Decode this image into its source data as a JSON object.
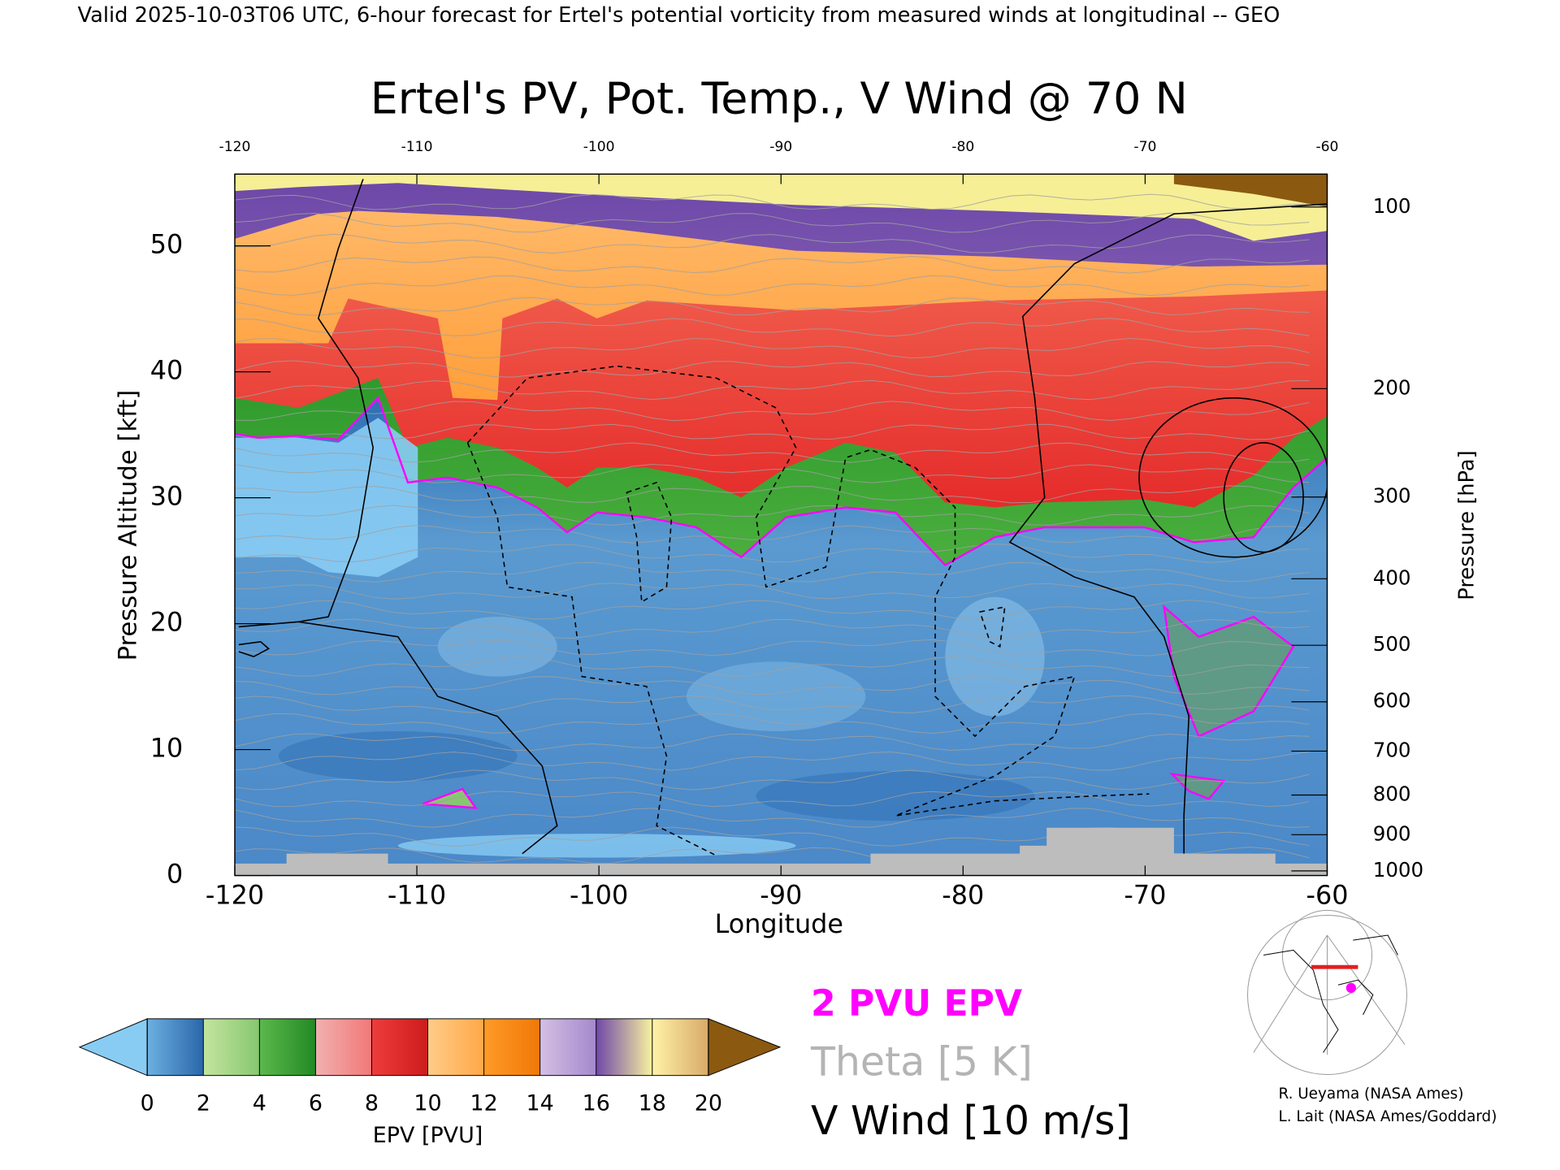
{
  "header": "Valid 2025-10-03T06 UTC, 6-hour forecast for Ertel's potential vorticity from measured winds at longitudinal -- GEO",
  "chart_data": {
    "type": "cross-section",
    "title": "Ertel's PV, Pot. Temp., V Wind @ 70 N",
    "x_label": "Longitude",
    "y_label": "Pressure Altitude [kft]",
    "y2_label": "Pressure [hPa]",
    "xlim": [
      -120,
      -60
    ],
    "xticks": [
      -120,
      -110,
      -100,
      -90,
      -80,
      -70,
      -60
    ],
    "ylim": [
      0,
      55.7
    ],
    "yticks": [
      0,
      10,
      20,
      30,
      40,
      50
    ],
    "y2lim": [
      1013.25,
      88.2
    ],
    "y2scale": "standard-atmosphere",
    "y2ticks": [
      100,
      200,
      300,
      400,
      500,
      600,
      700,
      800,
      900,
      1000
    ],
    "colorbar": {
      "label": "EPV [PVU]",
      "ticks": [
        0,
        2,
        4,
        6,
        8,
        10,
        12,
        14,
        16,
        18,
        20
      ],
      "colors": [
        [
          "#6cb0e0",
          "#2a66aa"
        ],
        [
          "#c4e4a0",
          "#86c870"
        ],
        [
          "#5cb84c",
          "#228a24"
        ],
        [
          "#f2b0b0",
          "#f27878"
        ],
        [
          "#ee3c3c",
          "#cc1c1c"
        ],
        [
          "#ffcc88",
          "#ffa848"
        ],
        [
          "#ff9a28",
          "#f07808"
        ],
        [
          "#d4c0e4",
          "#a488cc"
        ],
        [
          "#7048a8",
          "#f8f2a0"
        ],
        [
          "#fff2a8",
          "#d8aa68"
        ]
      ],
      "under": "#88ccf4",
      "over": "#8b5a10"
    },
    "legend": [
      {
        "name": "2 PVU EPV",
        "color": "#ff00ff"
      },
      {
        "name": "Theta [5 K]",
        "color": "#b4b4b4"
      },
      {
        "name": "V Wind [10 m/s]",
        "color": "#000000"
      }
    ],
    "credits": [
      "R. Ueyama (NASA Ames)",
      "L. Lait (NASA Ames/Goddard)"
    ]
  }
}
